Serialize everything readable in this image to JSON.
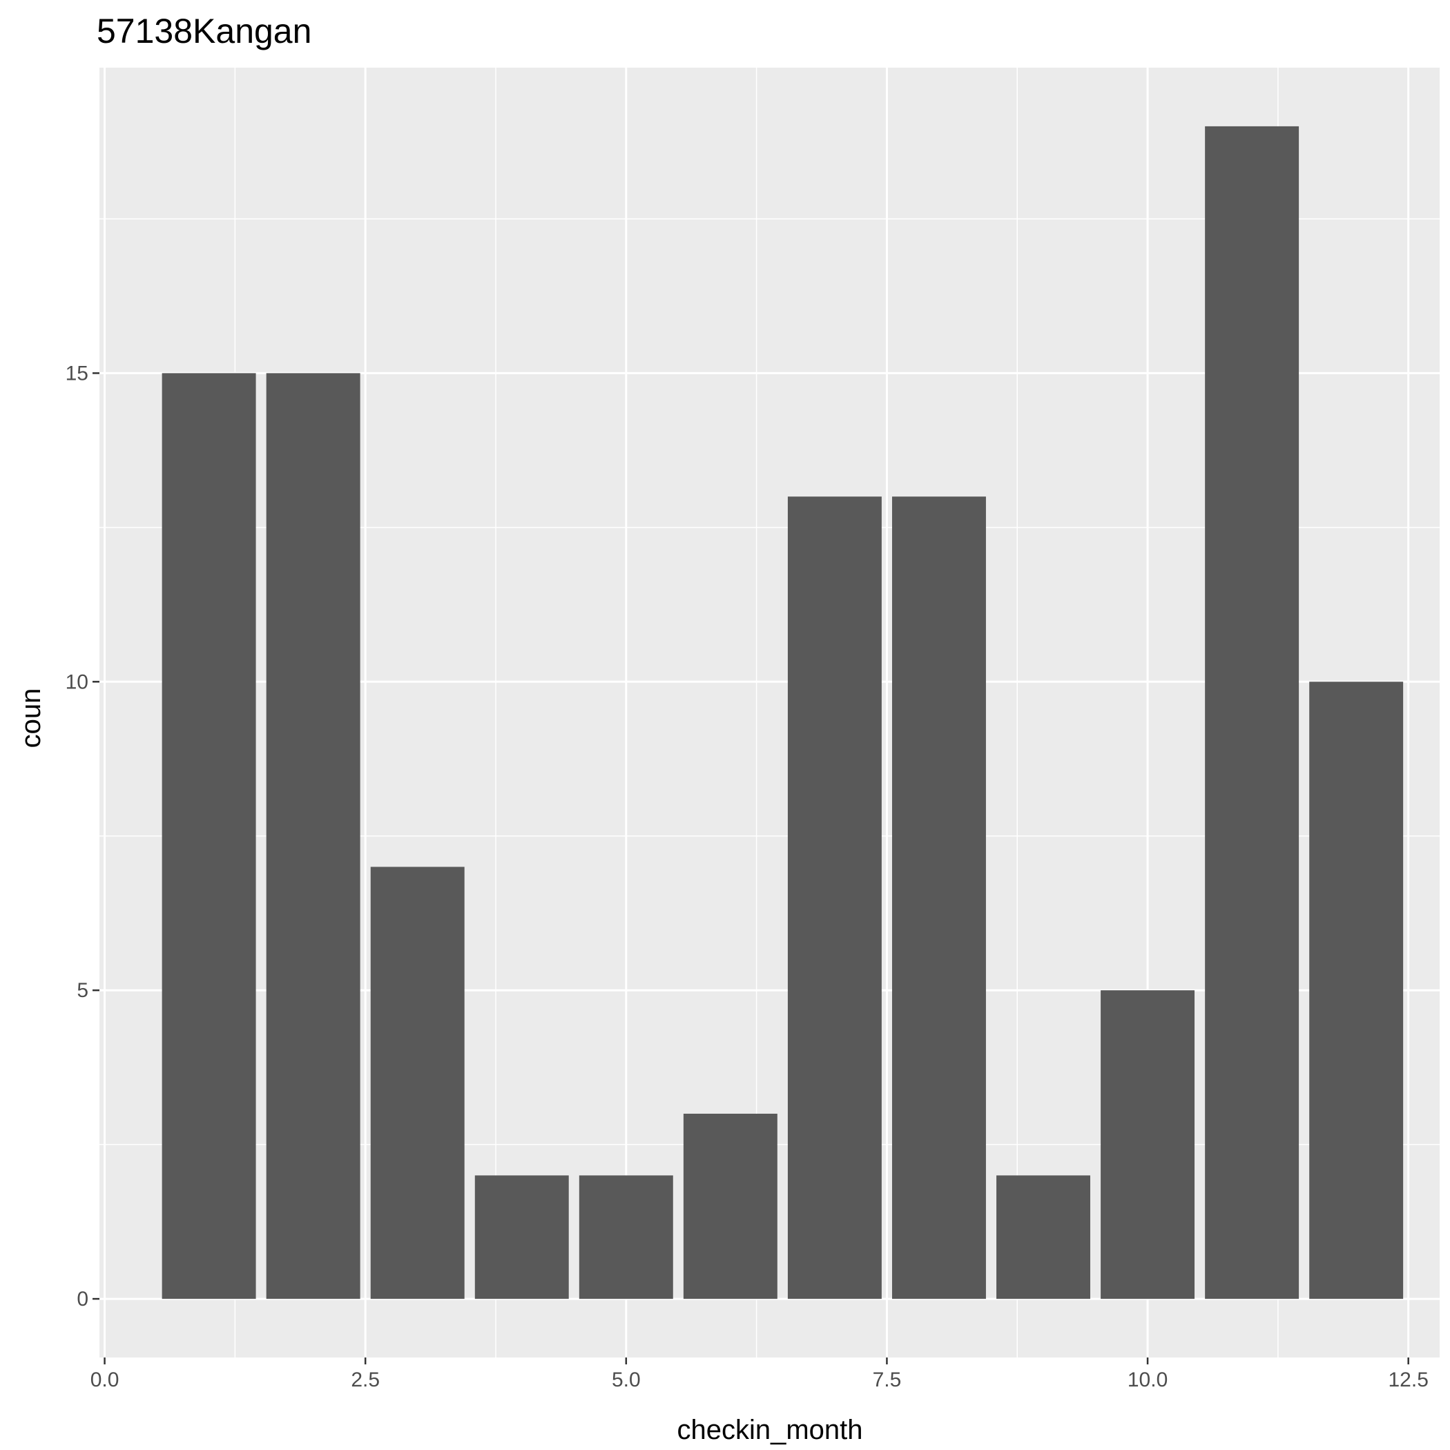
{
  "chart_data": {
    "type": "bar",
    "title": "57138Kangan",
    "xlabel": "checkin_month",
    "ylabel": "coun",
    "x": [
      1,
      2,
      3,
      4,
      5,
      6,
      7,
      8,
      9,
      10,
      11,
      12
    ],
    "values": [
      15,
      15,
      7,
      2,
      2,
      3,
      13,
      13,
      2,
      5,
      19,
      10
    ],
    "xlim": [
      -0.05,
      12.8
    ],
    "ylim": [
      -0.95,
      19.95
    ],
    "x_ticks": [
      0,
      2.5,
      5,
      7.5,
      10,
      12.5
    ],
    "x_tick_labels": [
      "0.0",
      "2.5",
      "5.0",
      "7.5",
      "10.0",
      "12.5"
    ],
    "y_ticks": [
      0,
      5,
      10,
      15
    ],
    "y_tick_labels": [
      "0",
      "5",
      "10",
      "15"
    ],
    "grid": true,
    "colors": {
      "bar": "#595959",
      "panel": "#ebebeb",
      "grid": "#ffffff",
      "tick": "#333333"
    }
  }
}
